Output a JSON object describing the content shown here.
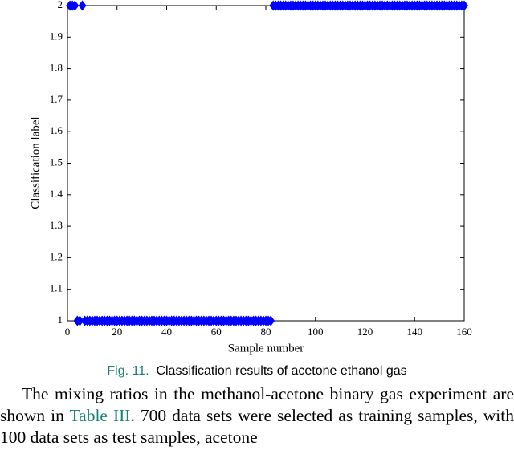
{
  "chart_data": {
    "type": "scatter",
    "xlabel": "Sample number",
    "ylabel": "Classification label",
    "color": "#0000ff",
    "xlim": [
      0,
      160
    ],
    "xticks": [
      0,
      20,
      40,
      60,
      80,
      100,
      120,
      140,
      160
    ],
    "ylim": [
      1,
      2
    ],
    "yticks": [
      1,
      1.1,
      1.2,
      1.3,
      1.4,
      1.5,
      1.6,
      1.7,
      1.8,
      1.9,
      2
    ],
    "x": [
      1,
      2,
      3,
      4,
      5,
      6,
      7,
      8,
      9,
      10,
      11,
      12,
      13,
      14,
      15,
      16,
      17,
      18,
      19,
      20,
      21,
      22,
      23,
      24,
      25,
      26,
      27,
      28,
      29,
      30,
      31,
      32,
      33,
      34,
      35,
      36,
      37,
      38,
      39,
      40,
      41,
      42,
      43,
      44,
      45,
      46,
      47,
      48,
      49,
      50,
      51,
      52,
      53,
      54,
      55,
      56,
      57,
      58,
      59,
      60,
      61,
      62,
      63,
      64,
      65,
      66,
      67,
      68,
      69,
      70,
      71,
      72,
      73,
      74,
      75,
      76,
      77,
      78,
      79,
      80,
      81,
      82,
      83,
      84,
      85,
      86,
      87,
      88,
      89,
      90,
      91,
      92,
      93,
      94,
      95,
      96,
      97,
      98,
      99,
      100,
      101,
      102,
      103,
      104,
      105,
      106,
      107,
      108,
      109,
      110,
      111,
      112,
      113,
      114,
      115,
      116,
      117,
      118,
      119,
      120,
      121,
      122,
      123,
      124,
      125,
      126,
      127,
      128,
      129,
      130,
      131,
      132,
      133,
      134,
      135,
      136,
      137,
      138,
      139,
      140,
      141,
      142,
      143,
      144,
      145,
      146,
      147,
      148,
      149,
      150,
      151,
      152,
      153,
      154,
      155,
      156,
      157,
      158,
      159,
      160
    ],
    "values": [
      2,
      2,
      2,
      1,
      1,
      2,
      1,
      1,
      1,
      1,
      1,
      1,
      1,
      1,
      1,
      1,
      1,
      1,
      1,
      1,
      1,
      1,
      1,
      1,
      1,
      1,
      1,
      1,
      1,
      1,
      1,
      1,
      1,
      1,
      1,
      1,
      1,
      1,
      1,
      1,
      1,
      1,
      1,
      1,
      1,
      1,
      1,
      1,
      1,
      1,
      1,
      1,
      1,
      1,
      1,
      1,
      1,
      1,
      1,
      1,
      1,
      1,
      1,
      1,
      1,
      1,
      1,
      1,
      1,
      1,
      1,
      1,
      1,
      1,
      1,
      1,
      1,
      1,
      1,
      1,
      1,
      1,
      2,
      2,
      2,
      2,
      2,
      2,
      2,
      2,
      2,
      2,
      2,
      2,
      2,
      2,
      2,
      2,
      2,
      2,
      2,
      2,
      2,
      2,
      2,
      2,
      2,
      2,
      2,
      2,
      2,
      2,
      2,
      2,
      2,
      2,
      2,
      2,
      2,
      2,
      2,
      2,
      2,
      2,
      2,
      2,
      2,
      2,
      2,
      2,
      2,
      2,
      2,
      2,
      2,
      2,
      2,
      2,
      2,
      2,
      2,
      2,
      2,
      2,
      2,
      2,
      2,
      2,
      2,
      2,
      2,
      2,
      2,
      2,
      2,
      2,
      2,
      2,
      2,
      2
    ]
  },
  "caption": {
    "label": "Fig. 11.",
    "text": "Classification results of acetone ethanol gas"
  },
  "paragraph": {
    "before": "The mixing ratios in the methanol-acetone binary gas experiment are shown in ",
    "link": "Table III",
    "after": ". 700 data sets were selected as training samples, with 100 data sets as test samples, acetone"
  }
}
